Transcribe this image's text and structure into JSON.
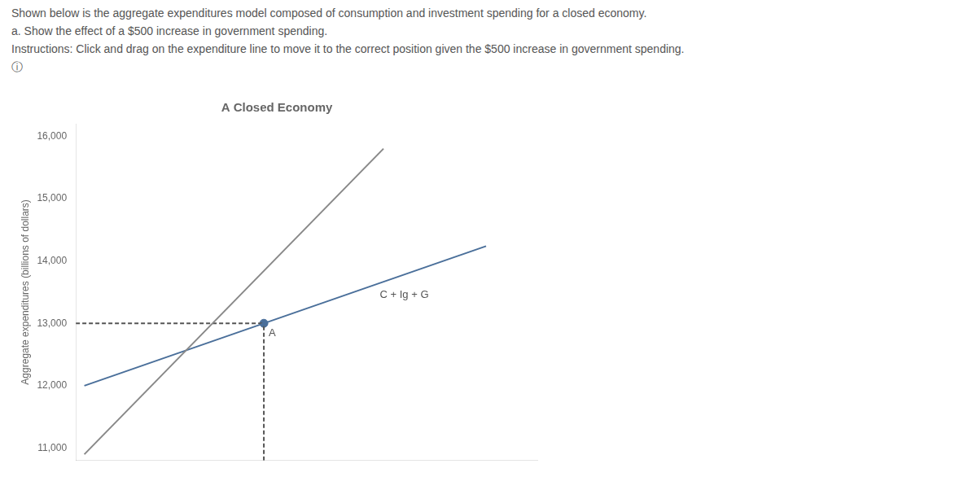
{
  "chart_data": {
    "type": "line",
    "title": "A Closed Economy",
    "subtitle": [
      "Shown below is the aggregate expenditures model composed of consumption and investment spending for a closed economy.",
      "a. Show the effect of a $500 increase in government spending.",
      "Instructions: Click and drag on the expenditure line to move it to the correct position given the $500 increase in government spending.",
      "ⓘ"
    ],
    "ylabel": "Aggregate expenditures (billions of dollars)",
    "xlim": [
      10800,
      16200
    ],
    "ylim": [
      10800,
      16200
    ],
    "yticks": [
      {
        "value": 11000,
        "label": "11,000"
      },
      {
        "value": 12000,
        "label": "12,000"
      },
      {
        "value": 13000,
        "label": "13,000"
      },
      {
        "value": 14000,
        "label": "14,000"
      },
      {
        "value": 15000,
        "label": "15,000"
      },
      {
        "value": 16000,
        "label": "16,000"
      }
    ],
    "tick_labels": "y",
    "grid": false,
    "series": [
      {
        "type": "line",
        "color": "#888888",
        "line_style": "solid",
        "x": [
          10900,
          14400
        ],
        "values": [
          10900,
          15800
        ]
      },
      {
        "type": "line",
        "color": "#4a6f9a",
        "line_style": "solid",
        "x": [
          10900,
          15600
        ],
        "values": [
          12000,
          14238.095238095239
        ]
      },
      {
        "type": "line",
        "color": "#555555",
        "line_style": "dashed",
        "x": [
          10800,
          13000
        ],
        "values": [
          13000,
          13000
        ]
      },
      {
        "type": "line",
        "color": "#555555",
        "line_style": "dashed",
        "x": [
          13000,
          13000
        ],
        "values": [
          10800,
          13000
        ]
      },
      {
        "type": "scatter",
        "color": "#4a6f9a",
        "marker": "circle",
        "x": [
          13000
        ],
        "values": [
          13000
        ]
      }
    ],
    "annotations": [
      {
        "text": "C + Ig + G",
        "x": 14300,
        "y": 13619.047619047618
      },
      {
        "text": "A",
        "x": 13000,
        "y": 13000
      }
    ]
  }
}
